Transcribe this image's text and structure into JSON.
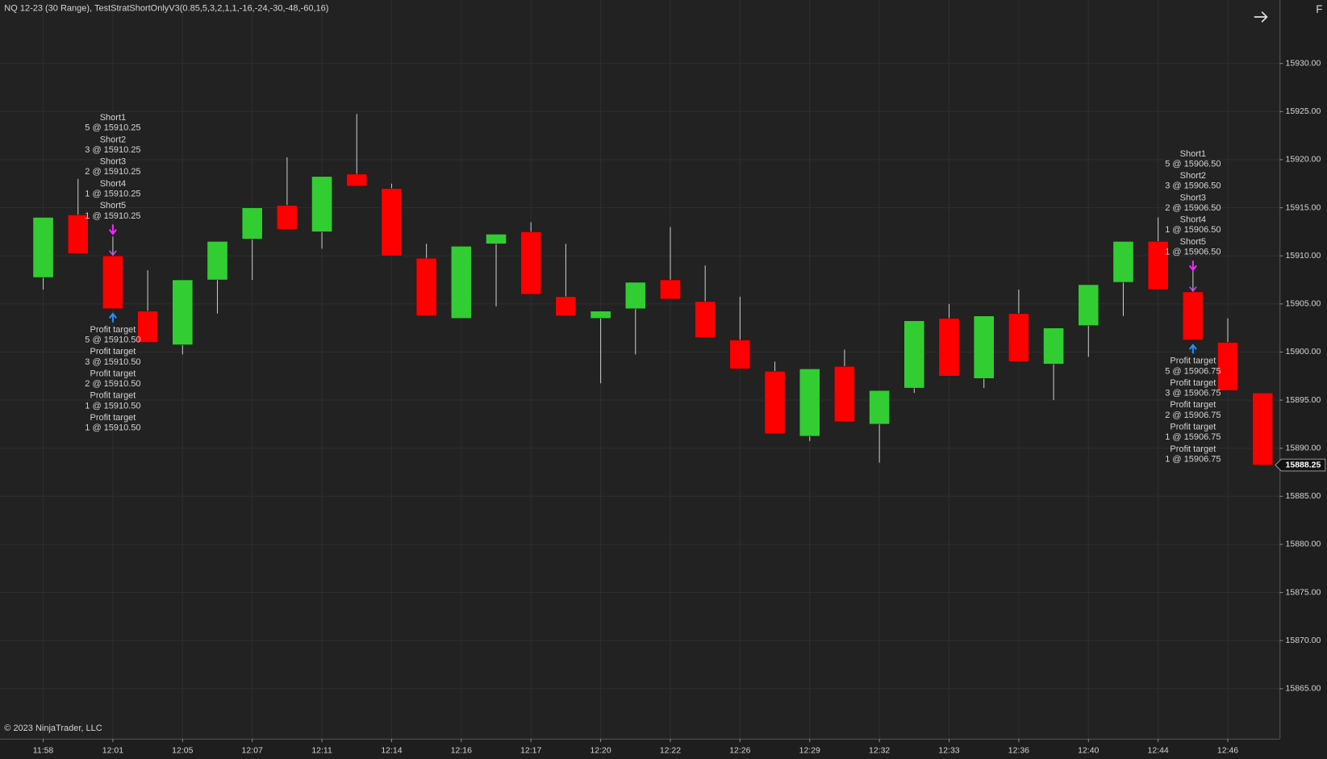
{
  "header": "NQ 12-23 (30 Range), TestStratShortOnlyV3(0.85,5,3,2,1,1,-16,-24,-30,-48,-60,16)",
  "footer": "© 2023 NinjaTrader, LLC",
  "panel_label": "F",
  "chart_data": {
    "type": "candlestick",
    "categories": [
      "11:58",
      null,
      "12:01",
      null,
      "12:05",
      null,
      "12:07",
      null,
      "12:11",
      null,
      "12:14",
      null,
      "12:16",
      null,
      "12:17",
      null,
      "12:20",
      null,
      "12:22",
      null,
      "12:26",
      null,
      "12:29",
      null,
      "12:32",
      null,
      "12:33",
      null,
      "12:36",
      null,
      "12:40",
      null,
      "12:44",
      null,
      "12:46",
      null
    ],
    "open": [
      15907.75,
      15914.25,
      15910,
      15904.25,
      15900.75,
      15907.5,
      15911.75,
      15915.25,
      15912.5,
      15918.5,
      15917,
      15909.75,
      15903.5,
      15911.25,
      15912.5,
      15905.75,
      15903.5,
      15904.5,
      15907.5,
      15905.25,
      15901.25,
      15898,
      15891.25,
      15898.5,
      15892.5,
      15896.25,
      15903.5,
      15897.25,
      15904,
      15898.75,
      15902.75,
      15907.25,
      15911.5,
      15906.25,
      15901,
      15895.75
    ],
    "high": [
      15914,
      15918,
      15912,
      15908.5,
      15907.5,
      15911.5,
      15915,
      15920.25,
      15918.25,
      15924.75,
      15917.5,
      15911.25,
      15911,
      15912.25,
      15913.5,
      15911.25,
      15904.25,
      15907.25,
      15913,
      15909,
      15905.75,
      15899,
      15898.25,
      15900.25,
      15896,
      15903.25,
      15905,
      15903.75,
      15906.5,
      15902.5,
      15907,
      15911.5,
      15914,
      15908.75,
      15903.5,
      15895.75
    ],
    "low": [
      15906.5,
      15910.25,
      15904.5,
      15901,
      15899.75,
      15904,
      15907.5,
      15912.75,
      15910.75,
      15917.25,
      15910,
      15903.75,
      15903.5,
      15904.75,
      15906,
      15903.75,
      15896.75,
      15899.75,
      15905.5,
      15901.5,
      15898.25,
      15891.5,
      15890.75,
      15892.75,
      15888.5,
      15895.75,
      15897.5,
      15896.25,
      15899,
      15895,
      15899.5,
      15903.75,
      15906.5,
      15901.25,
      15896,
      15888.25
    ],
    "close": [
      15914,
      15910.25,
      15904.5,
      15901,
      15907.5,
      15911.5,
      15915,
      15912.75,
      15918.25,
      15917.25,
      15910,
      15903.75,
      15911,
      15912.25,
      15906,
      15903.75,
      15904.25,
      15907.25,
      15905.5,
      15901.5,
      15898.25,
      15891.5,
      15898.25,
      15892.75,
      15896,
      15903.25,
      15897.5,
      15903.75,
      15899,
      15902.5,
      15907,
      15911.5,
      15906.5,
      15901.25,
      15896,
      15888.25
    ],
    "up_color": "#32cd32",
    "down_color": "#ff0000",
    "wick_color": "#c8c8c8",
    "ylim": [
      15859.8,
      15936.6
    ],
    "yticks": [
      {
        "value": 15865,
        "label": "15865.00"
      },
      {
        "value": 15870,
        "label": "15870.00"
      },
      {
        "value": 15875,
        "label": "15875.00"
      },
      {
        "value": 15880,
        "label": "15880.00"
      },
      {
        "value": 15885,
        "label": "15885.00"
      },
      {
        "value": 15890,
        "label": "15890.00"
      },
      {
        "value": 15895,
        "label": "15895.00"
      },
      {
        "value": 15900,
        "label": "15900.00"
      },
      {
        "value": 15905,
        "label": "15905.00"
      },
      {
        "value": 15910,
        "label": "15910.00"
      },
      {
        "value": 15915,
        "label": "15915.00"
      },
      {
        "value": 15920,
        "label": "15920.00"
      },
      {
        "value": 15925,
        "label": "15925.00"
      },
      {
        "value": 15930,
        "label": "15930.00"
      }
    ],
    "grid": true,
    "annotations": [
      {
        "entries": [
          {
            "name": "Short1",
            "label": "5 @ 15910.25"
          },
          {
            "name": "Short2",
            "label": "3 @ 15910.25"
          },
          {
            "name": "Short3",
            "label": "2 @ 15910.25"
          },
          {
            "name": "Short4",
            "label": "1 @ 15910.25"
          },
          {
            "name": "Short5",
            "label": "1 @ 15910.25"
          }
        ],
        "exits": [
          {
            "name": "Profit target",
            "label": "5 @ 15910.50"
          },
          {
            "name": "Profit target",
            "label": "3 @ 15910.50"
          },
          {
            "name": "Profit target",
            "label": "2 @ 15910.50"
          },
          {
            "name": "Profit target",
            "label": "1 @ 15910.50"
          },
          {
            "name": "Profit target",
            "label": "1 @ 15910.50"
          }
        ]
      },
      {
        "entries": [
          {
            "name": "Short1",
            "label": "5 @ 15906.50"
          },
          {
            "name": "Short2",
            "label": "3 @ 15906.50"
          },
          {
            "name": "Short3",
            "label": "2 @ 15906.50"
          },
          {
            "name": "Short4",
            "label": "1 @ 15906.50"
          },
          {
            "name": "Short5",
            "label": "1 @ 15906.50"
          }
        ],
        "exits": [
          {
            "name": "Profit target",
            "label": "5 @ 15906.75"
          },
          {
            "name": "Profit target",
            "label": "3 @ 15906.75"
          },
          {
            "name": "Profit target",
            "label": "2 @ 15906.75"
          },
          {
            "name": "Profit target",
            "label": "1 @ 15906.75"
          },
          {
            "name": "Profit target",
            "label": "1 @ 15906.75"
          }
        ]
      }
    ]
  }
}
